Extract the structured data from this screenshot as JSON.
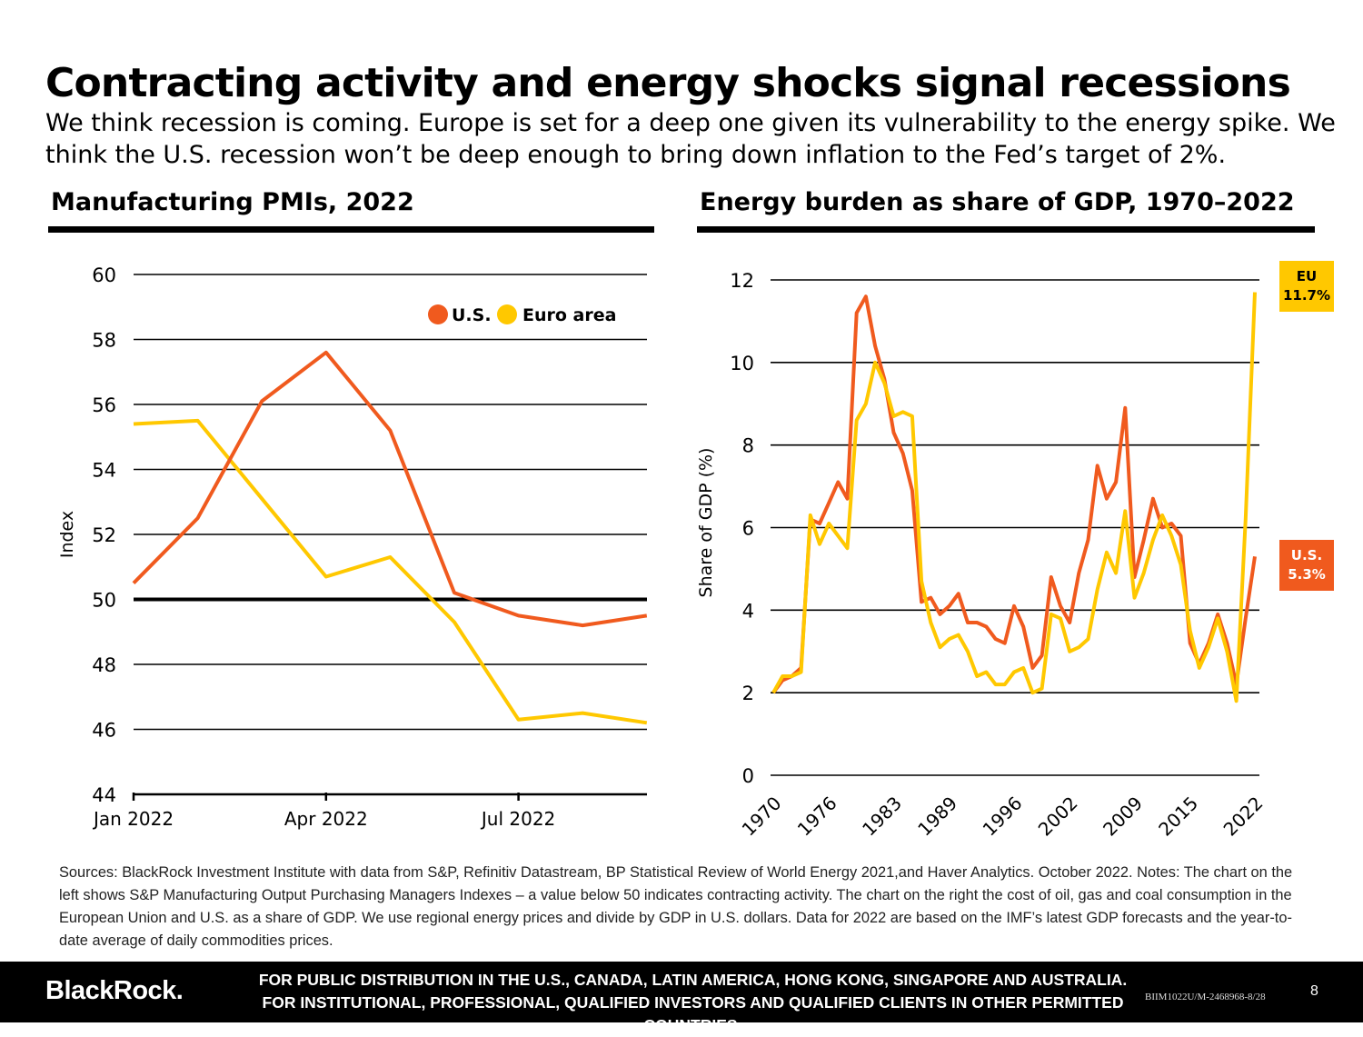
{
  "page": {
    "title": "Contracting activity and energy shocks signal recessions",
    "subtitle": "We think recession is coming. Europe is set for a deep one given its vulnerability to the energy spike. We think the U.S. recession won’t be deep enough to bring down inflation to the Fed’s target of 2%.",
    "notes": "Sources: BlackRock Investment Institute with data from S&P, Refinitiv Datastream, BP Statistical Review of World Energy 2021,and Haver Analytics. October 2022. Notes: The chart on the left shows S&P Manufacturing Output Purchasing Managers Indexes – a value below 50 indicates contracting activity. The chart on the right the cost of oil, gas and coal consumption in the European Union and U.S. as a share of GDP. We use regional energy prices and divide by GDP in U.S. dollars. Data for 2022 are based on the IMF’s latest GDP forecasts and the year-to-date average of daily commodities prices."
  },
  "footer": {
    "logo": "BlackRock.",
    "disclaimer": "FOR PUBLIC DISTRIBUTION IN THE U.S., CANADA, LATIN AMERICA, HONG KONG, SINGAPORE AND AUSTRALIA. FOR INSTITUTIONAL,  PROFESSIONAL, QUALIFIED INVESTORS AND QUALIFIED CLIENTS IN OTHER PERMITTED COUNTRIES.",
    "doc_id": "BIIM1022U/M-2468968-8/28",
    "page_number": "8"
  },
  "colors": {
    "us": "#f05a1e",
    "eu": "#ffc800",
    "axis": "#000000"
  },
  "chart_data": [
    {
      "type": "line",
      "title": "Manufacturing PMIs, 2022",
      "ylabel": "Index",
      "xlabel": "",
      "ylim": [
        44,
        60
      ],
      "yticks": [
        44,
        46,
        48,
        50,
        52,
        54,
        56,
        58,
        60
      ],
      "x": [
        "2022-01",
        "2022-02",
        "2022-03",
        "2022-04",
        "2022-05",
        "2022-06",
        "2022-07",
        "2022-08",
        "2022-09"
      ],
      "xtick_labels": [
        {
          "x": "2022-01",
          "label": "Jan 2022"
        },
        {
          "x": "2022-04",
          "label": "Apr 2022"
        },
        {
          "x": "2022-07",
          "label": "Jul 2022"
        }
      ],
      "reference_line": 50,
      "legend": {
        "placement": "top-right",
        "entries": [
          "U.S.",
          "Euro area"
        ]
      },
      "grid": true,
      "series": [
        {
          "name": "U.S.",
          "color": "#f05a1e",
          "values": [
            50.5,
            52.5,
            56.1,
            57.6,
            55.2,
            50.2,
            49.5,
            49.2,
            49.5
          ]
        },
        {
          "name": "Euro area",
          "color": "#ffc800",
          "values": [
            55.4,
            55.5,
            53.1,
            50.7,
            51.3,
            49.3,
            46.3,
            46.5,
            46.2
          ]
        }
      ]
    },
    {
      "type": "line",
      "title": "Energy burden as share of GDP, 1970–2022",
      "ylabel": "Share of GDP (%)",
      "xlabel": "",
      "ylim": [
        0,
        12
      ],
      "yticks": [
        0,
        2,
        4,
        6,
        8,
        10,
        12
      ],
      "xlim": [
        1970,
        2022
      ],
      "xtick_labels": [
        "1970",
        "1976",
        "1983",
        "1989",
        "1996",
        "2002",
        "2009",
        "2015",
        "2022"
      ],
      "grid": true,
      "end_labels": [
        {
          "series": "EU",
          "line1": "EU",
          "line2": "11.7%"
        },
        {
          "series": "U.S.",
          "line1": "U.S.",
          "line2": "5.3%"
        }
      ],
      "x": [
        1970,
        1971,
        1972,
        1973,
        1974,
        1975,
        1976,
        1977,
        1978,
        1979,
        1980,
        1981,
        1982,
        1983,
        1984,
        1985,
        1986,
        1987,
        1988,
        1989,
        1990,
        1991,
        1992,
        1993,
        1994,
        1995,
        1996,
        1997,
        1998,
        1999,
        2000,
        2001,
        2002,
        2003,
        2004,
        2005,
        2006,
        2007,
        2008,
        2009,
        2010,
        2011,
        2012,
        2013,
        2014,
        2015,
        2016,
        2017,
        2018,
        2019,
        2020,
        2021,
        2022
      ],
      "series": [
        {
          "name": "U.S.",
          "color": "#f05a1e",
          "values": [
            2.0,
            2.3,
            2.4,
            2.6,
            6.2,
            6.1,
            6.6,
            7.1,
            6.7,
            11.2,
            11.6,
            10.4,
            9.6,
            8.3,
            7.8,
            6.9,
            4.2,
            4.3,
            3.9,
            4.1,
            4.4,
            3.7,
            3.7,
            3.6,
            3.3,
            3.2,
            4.1,
            3.6,
            2.6,
            2.9,
            4.8,
            4.1,
            3.7,
            4.9,
            5.7,
            7.5,
            6.7,
            7.1,
            8.9,
            4.8,
            5.7,
            6.7,
            6.0,
            6.1,
            5.8,
            3.2,
            2.7,
            3.2,
            3.9,
            3.2,
            2.2,
            3.8,
            5.3
          ]
        },
        {
          "name": "EU",
          "color": "#ffc800",
          "values": [
            2.0,
            2.4,
            2.4,
            2.5,
            6.3,
            5.6,
            6.1,
            5.8,
            5.5,
            8.6,
            9.0,
            10.0,
            9.5,
            8.7,
            8.8,
            8.7,
            4.7,
            3.7,
            3.1,
            3.3,
            3.4,
            3.0,
            2.4,
            2.5,
            2.2,
            2.2,
            2.5,
            2.6,
            2.0,
            2.1,
            3.9,
            3.8,
            3.0,
            3.1,
            3.3,
            4.5,
            5.4,
            4.9,
            6.4,
            4.3,
            4.9,
            5.7,
            6.3,
            5.8,
            5.1,
            3.5,
            2.6,
            3.1,
            3.8,
            3.0,
            1.8,
            6.2,
            11.7
          ]
        }
      ]
    }
  ]
}
